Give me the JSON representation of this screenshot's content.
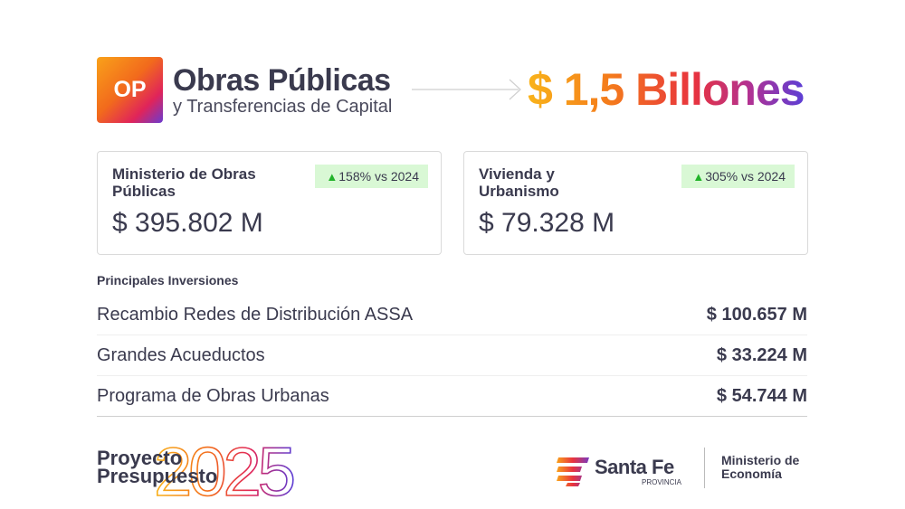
{
  "header": {
    "logo_text": "OP",
    "title": "Obras Públicas",
    "subtitle": "y Transferencias de Capital",
    "total": "$ 1,5 Billones"
  },
  "cards": [
    {
      "title": "Ministerio de Obras Públicas",
      "badge": "158% vs 2024",
      "value": "$ 395.802 M"
    },
    {
      "title": "Vivienda y Urbanismo",
      "badge": "305% vs 2024",
      "value": "$ 79.328 M"
    }
  ],
  "investments": {
    "heading": "Principales Inversiones",
    "rows": [
      {
        "name": "Recambio Redes de Distribución ASSA",
        "value": "$ 100.657 M"
      },
      {
        "name": "Grandes Acueductos",
        "value": "$ 33.224 M"
      },
      {
        "name": "Programa de Obras Urbanas",
        "value": "$ 54.744 M"
      }
    ]
  },
  "footer": {
    "project_line1": "Proyecto",
    "project_line2": "Presupuesto",
    "year": "2025",
    "brand": "Santa Fe",
    "brand_sub": "PROVINCIA",
    "ministry_line1": "Ministerio de",
    "ministry_line2": "Economía"
  },
  "colors": {
    "accent_orange": "#f47a1c",
    "accent_purple": "#5b3fd6",
    "badge_bg": "#d9f8d5",
    "up_green": "#22b32a",
    "text": "#3a3a4e"
  }
}
